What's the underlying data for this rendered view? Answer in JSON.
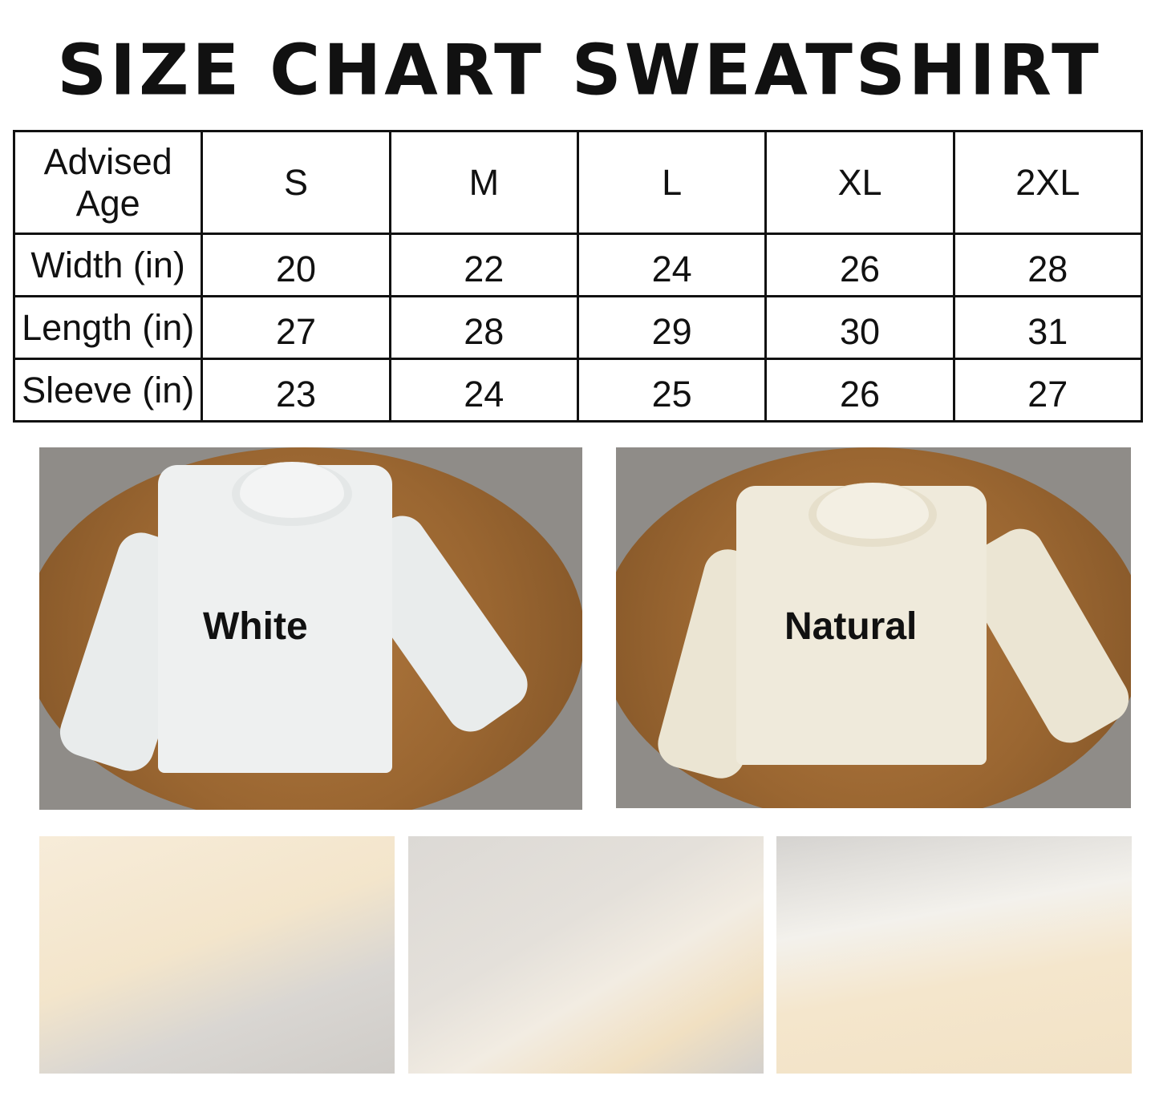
{
  "title": "SIZE CHART SWEATSHIRT",
  "size_table": {
    "header": [
      "Advised Age",
      "S",
      "M",
      "L",
      "XL",
      "2XL"
    ],
    "rows": [
      [
        "Width (in)",
        "20",
        "22",
        "24",
        "26",
        "28"
      ],
      [
        "Length (in)",
        "27",
        "28",
        "29",
        "30",
        "31"
      ],
      [
        "Sleeve (in)",
        "23",
        "24",
        "25",
        "26",
        "27"
      ]
    ]
  },
  "photos": {
    "white": {
      "label": "White",
      "color": "#eef0f0"
    },
    "natural": {
      "label": "Natural",
      "color": "#efeadb"
    }
  }
}
